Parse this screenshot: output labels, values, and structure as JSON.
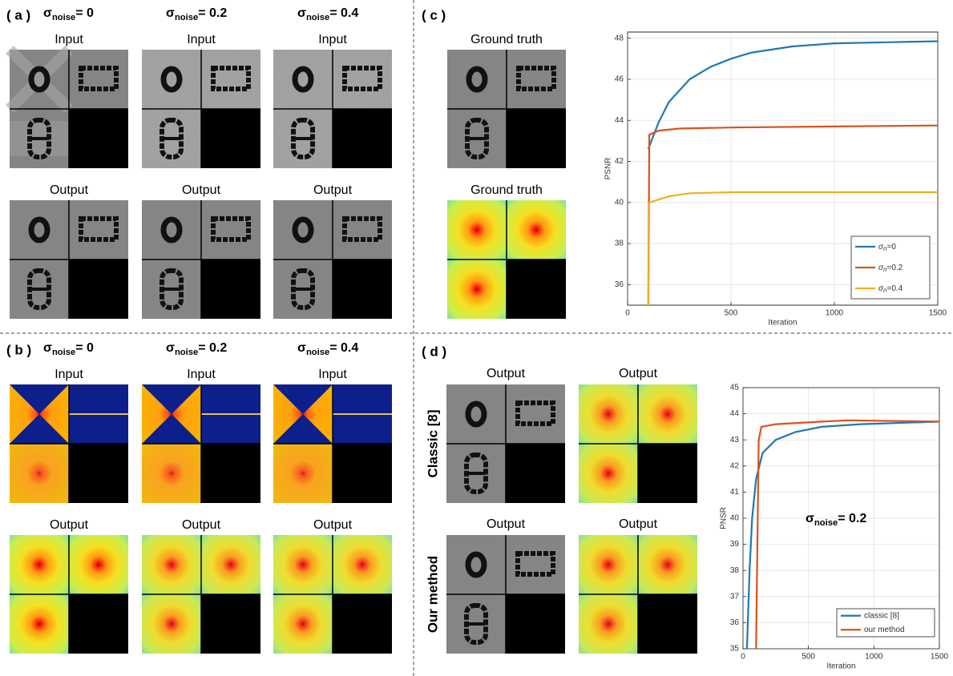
{
  "panels": {
    "a": {
      "label": "( a )",
      "columns": [
        {
          "header": {
            "symbol": "σ",
            "sub": "noise",
            "rest": "= 0"
          },
          "top_title": "Input",
          "bottom_title": "Output"
        },
        {
          "header": {
            "symbol": "σ",
            "sub": "noise",
            "rest": "= 0.2"
          },
          "top_title": "Input",
          "bottom_title": "Output"
        },
        {
          "header": {
            "symbol": "σ",
            "sub": "noise",
            "rest": "= 0.4"
          },
          "top_title": "Input",
          "bottom_title": "Output"
        }
      ]
    },
    "b": {
      "label": "( b )",
      "columns": [
        {
          "header": {
            "symbol": "σ",
            "sub": "noise",
            "rest": "= 0"
          },
          "top_title": "Input",
          "bottom_title": "Output"
        },
        {
          "header": {
            "symbol": "σ",
            "sub": "noise",
            "rest": "= 0.2"
          },
          "top_title": "Input",
          "bottom_title": "Output"
        },
        {
          "header": {
            "symbol": "σ",
            "sub": "noise",
            "rest": "= 0.4"
          },
          "top_title": "Input",
          "bottom_title": "Output"
        }
      ]
    },
    "c": {
      "label": "( c )",
      "titles": [
        "Ground truth",
        "Ground truth"
      ]
    },
    "d": {
      "label": "( d )",
      "rows": [
        {
          "row_label": "Classic [8]",
          "titles": [
            "Output",
            "Output"
          ]
        },
        {
          "row_label": "Our method",
          "titles": [
            "Output",
            "Output"
          ]
        }
      ]
    }
  },
  "chart_data": [
    {
      "type": "line",
      "xlabel": "Iteration",
      "ylabel": "PSNR",
      "xlim": [
        0,
        1500
      ],
      "ylim": [
        35,
        48.3
      ],
      "xticks": [
        0,
        500,
        1000,
        1500
      ],
      "yticks": [
        36,
        38,
        40,
        42,
        44,
        46,
        48
      ],
      "grid": true,
      "legend": "lower right",
      "series": [
        {
          "name": {
            "symbol": "σ",
            "sub": "n",
            "rest": "=0"
          },
          "color": "#1f77b4",
          "x": [
            100,
            150,
            200,
            300,
            400,
            500,
            600,
            800,
            1000,
            1250,
            1500
          ],
          "values": [
            42.6,
            43.9,
            44.9,
            46.0,
            46.6,
            47.0,
            47.3,
            47.6,
            47.75,
            47.8,
            47.85
          ]
        },
        {
          "name": {
            "symbol": "σ",
            "sub": "n",
            "rest": "=0.2"
          },
          "color": "#d95319",
          "x": [
            100,
            105,
            150,
            250,
            500,
            1000,
            1500
          ],
          "values": [
            35,
            43.3,
            43.5,
            43.6,
            43.65,
            43.7,
            43.75
          ]
        },
        {
          "name": {
            "symbol": "σ",
            "sub": "n",
            "rest": "=0.4"
          },
          "color": "#edb120",
          "x": [
            100,
            105,
            200,
            300,
            500,
            1000,
            1500
          ],
          "values": [
            35,
            40.0,
            40.3,
            40.45,
            40.5,
            40.5,
            40.5
          ]
        }
      ]
    },
    {
      "type": "line",
      "xlabel": "Iteration",
      "ylabel": "PNSR",
      "xlim": [
        0,
        1500
      ],
      "ylim": [
        35,
        45
      ],
      "xticks": [
        0,
        500,
        1000,
        1500
      ],
      "yticks": [
        35,
        36,
        37,
        38,
        39,
        40,
        41,
        42,
        43,
        44,
        45
      ],
      "grid": true,
      "legend": "lower right",
      "annotation": {
        "symbol": "σ",
        "sub": "noise",
        "rest": "= 0.2"
      },
      "series": [
        {
          "name": "classic [8]",
          "color": "#1f77b4",
          "x": [
            30,
            50,
            70,
            100,
            150,
            250,
            400,
            600,
            900,
            1500
          ],
          "values": [
            35,
            38,
            40,
            41.5,
            42.5,
            43.0,
            43.3,
            43.5,
            43.6,
            43.7
          ]
        },
        {
          "name": "our method",
          "color": "#d95319",
          "x": [
            100,
            120,
            140,
            250,
            600,
            800,
            1500
          ],
          "values": [
            35,
            43.0,
            43.5,
            43.6,
            43.7,
            43.75,
            43.7
          ]
        }
      ]
    }
  ]
}
